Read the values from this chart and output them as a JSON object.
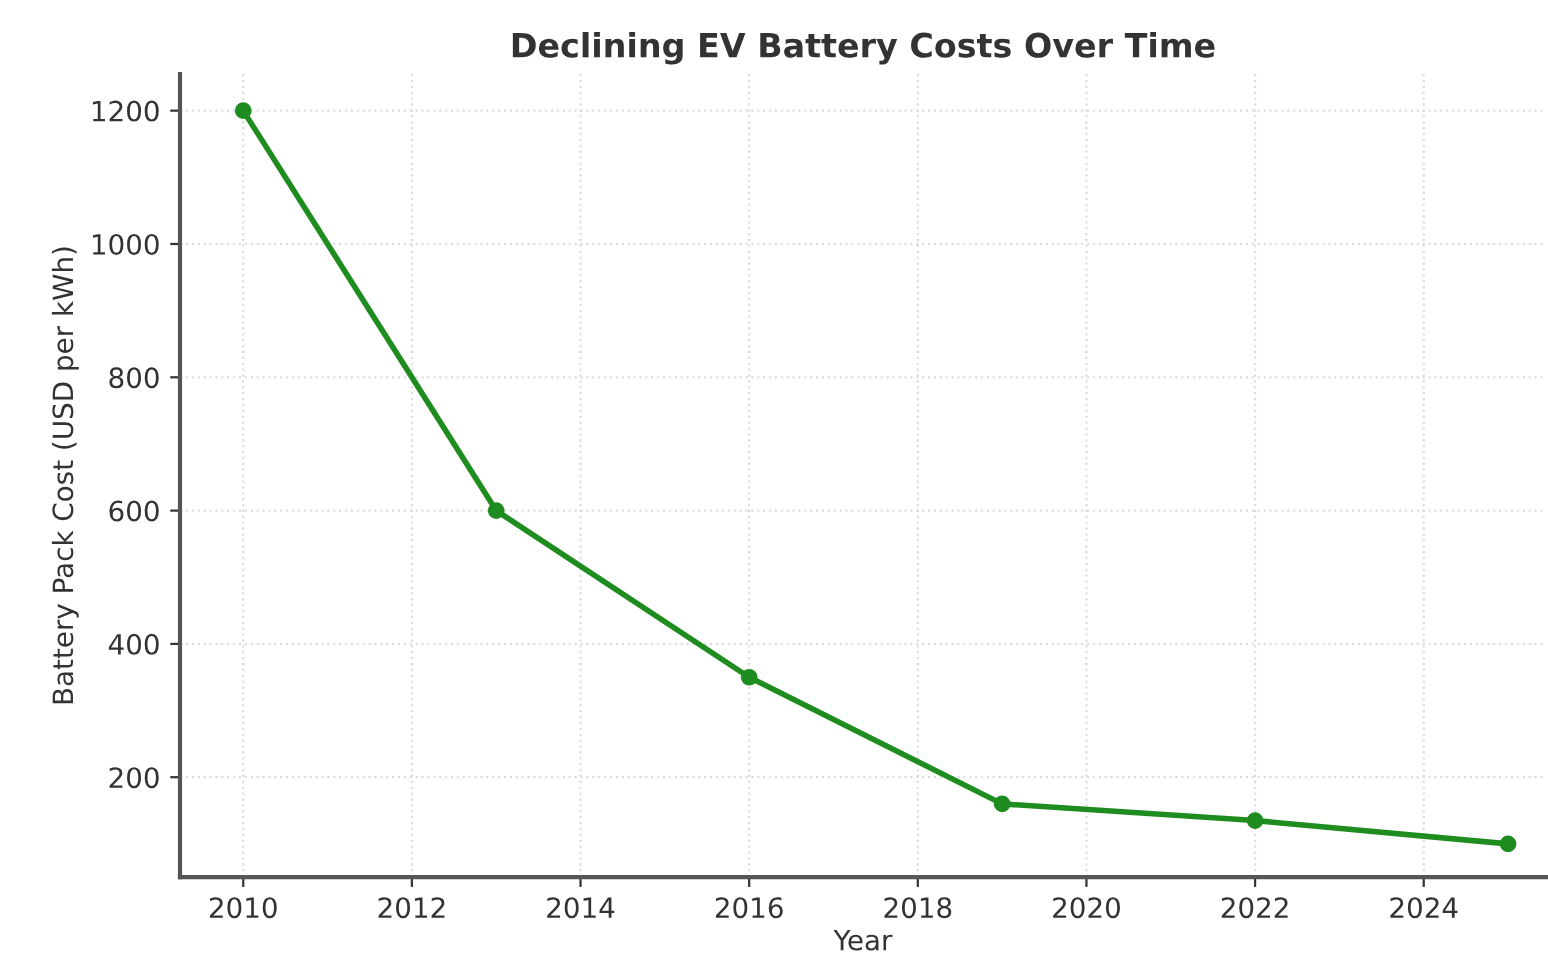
{
  "chart_data": {
    "type": "line",
    "title": "Declining EV Battery Costs Over Time",
    "xlabel": "Year",
    "ylabel": "Battery Pack Cost (USD per kWh)",
    "x": [
      2010,
      2013,
      2016,
      2019,
      2022,
      2025
    ],
    "series": [
      {
        "color": "#1e8c1e",
        "values": [
          1200,
          600,
          350,
          160,
          135,
          100
        ]
      }
    ],
    "xlim": [
      2009.25,
      2025.45
    ],
    "ylim": [
      50,
      1255
    ],
    "xticks": [
      2010,
      2012,
      2014,
      2016,
      2018,
      2020,
      2022,
      2024
    ],
    "yticks": [
      200,
      400,
      600,
      800,
      1000,
      1200
    ],
    "grid": true,
    "marker": "circle",
    "line_style": "solid"
  }
}
